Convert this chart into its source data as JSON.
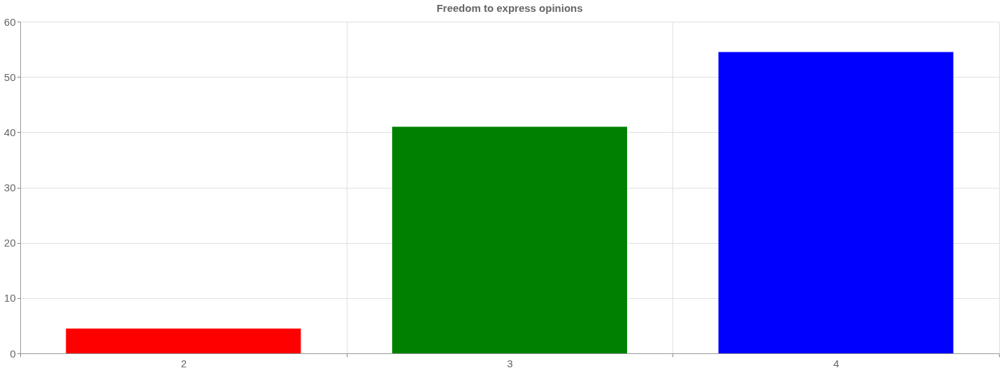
{
  "chart_data": {
    "type": "bar",
    "title": "Freedom to express opinions",
    "categories": [
      "2",
      "3",
      "4"
    ],
    "values": [
      4.5,
      41,
      54.5
    ],
    "colors": [
      "#ff0000",
      "#008000",
      "#0000ff"
    ],
    "ylim": [
      0,
      60
    ],
    "yticks": [
      0,
      10,
      20,
      30,
      40,
      50,
      60
    ],
    "grid": true
  }
}
